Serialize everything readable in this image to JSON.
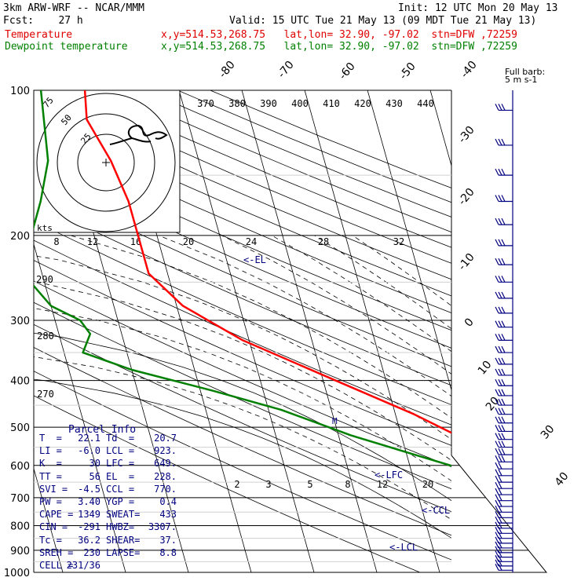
{
  "header": {
    "model": "3km ARW-WRF -- NCAR/MMM",
    "init": "Init: 12 UTC Mon 20 May 13",
    "fcst": "Fcst:    27 h",
    "valid": "Valid: 15 UTC Tue 21 May 13 (09 MDT Tue 21 May 13)",
    "temp_label": "Temperature",
    "dew_label": "Dewpoint temperature",
    "coords": "x,y=514.53,268.75   lat,lon= 32.90, -97.02  stn=DFW ,72259"
  },
  "colors": {
    "temperature": "#ff0000",
    "dewpoint": "#008000",
    "isobars": "#000000",
    "annotation": "#000080"
  },
  "chart_data": {
    "type": "line",
    "title": "",
    "xlabel": "",
    "ylabel": "",
    "pressure_levels": [
      "100",
      "200",
      "300",
      "400",
      "500",
      "600",
      "700",
      "800",
      "900",
      "1000"
    ],
    "isotherm_labels": [
      "-80",
      "-70",
      "-60",
      "-50",
      "-40",
      "-30",
      "-20",
      "-10",
      "0",
      "10",
      "20",
      "30",
      "40"
    ],
    "theta_labels_top": [
      "370",
      "380",
      "390",
      "400",
      "410",
      "420",
      "430",
      "440"
    ],
    "theta_labels_left": [
      "290",
      "280",
      "270"
    ],
    "hodo_speed_labels": [
      "75",
      "50",
      "25"
    ],
    "hodo_axis_label": "kts",
    "mixing_ratio_labels_top": [
      "8",
      "12",
      "16",
      "20",
      "24",
      "28",
      "32"
    ],
    "mixing_ratio_labels_low": [
      "2",
      "3",
      "5",
      "8",
      "12",
      "20"
    ],
    "annotations": {
      "el": "<-EL",
      "lfc": "<-LFC",
      "ccl": "<-CCL",
      "lcl": "<-LCL",
      "m": "M"
    },
    "barb_legend": [
      "Full barb:",
      "5 m s-1"
    ],
    "series": [
      {
        "name": "Temperature",
        "points": [
          [
            100,
            -55
          ],
          [
            115,
            -56
          ],
          [
            140,
            -54
          ],
          [
            170,
            -53
          ],
          [
            200,
            -53
          ],
          [
            240,
            -53
          ],
          [
            280,
            -49
          ],
          [
            330,
            -41
          ],
          [
            400,
            -28
          ],
          [
            470,
            -17
          ],
          [
            540,
            -9
          ],
          [
            600,
            -2
          ],
          [
            660,
            6
          ],
          [
            700,
            10
          ],
          [
            760,
            15
          ],
          [
            800,
            18
          ],
          [
            850,
            19
          ],
          [
            880,
            20
          ],
          [
            925,
            20.5
          ],
          [
            960,
            21.5
          ],
          [
            1000,
            22.1
          ]
        ]
      },
      {
        "name": "Dewpoint temperature",
        "points": [
          [
            100,
            -62
          ],
          [
            140,
            -64
          ],
          [
            170,
            -67
          ],
          [
            200,
            -70
          ],
          [
            240,
            -73
          ],
          [
            280,
            -70
          ],
          [
            300,
            -66
          ],
          [
            320,
            -65
          ],
          [
            350,
            -67
          ],
          [
            380,
            -60
          ],
          [
            420,
            -48
          ],
          [
            460,
            -38
          ],
          [
            520,
            -28
          ],
          [
            580,
            -17
          ],
          [
            640,
            -7
          ],
          [
            700,
            4
          ],
          [
            760,
            11
          ],
          [
            820,
            13
          ],
          [
            880,
            13
          ],
          [
            925,
            18
          ],
          [
            960,
            19
          ],
          [
            1000,
            20.7
          ]
        ]
      }
    ],
    "parcel_info": {
      "title": "Parcel Info",
      "rows": [
        [
          "T  =",
          "22.1",
          "Td  =",
          "20.7"
        ],
        [
          "LI =",
          "-6.0",
          "LCL =",
          "923."
        ],
        [
          "K  =",
          "30",
          "LFC =",
          "649."
        ],
        [
          "TT =",
          "56",
          "EL  =",
          "228."
        ],
        [
          "SVI =",
          "-4.5",
          "CCL =",
          "770."
        ],
        [
          "PW =",
          "3.40",
          "YGP =",
          "0.4"
        ],
        [
          "CAPE =",
          "1349",
          "SWEAT=",
          "433"
        ],
        [
          "CIN =",
          "-291",
          "HWBZ=",
          "3307."
        ],
        [
          "Tc =",
          "36.2",
          "SHEAR=",
          "37."
        ],
        [
          "SREH =",
          "230",
          "LAPSE=",
          "8.8"
        ],
        [
          "CELL =",
          "231/36",
          "",
          ""
        ]
      ]
    }
  }
}
